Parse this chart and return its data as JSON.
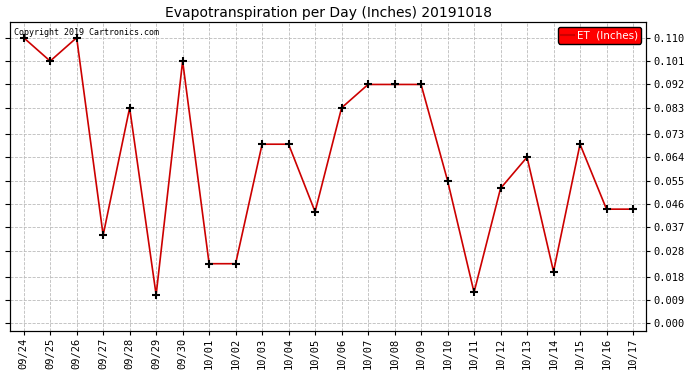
{
  "title": "Evapotranspiration per Day (Inches) 20191018",
  "copyright_text": "Copyright 2019 Cartronics.com",
  "legend_label": "ET  (Inches)",
  "legend_bg": "#ff0000",
  "legend_text_color": "#ffffff",
  "line_color": "#cc0000",
  "marker_color": "#000000",
  "background_color": "#ffffff",
  "grid_color": "#bbbbbb",
  "x_labels": [
    "09/24",
    "09/25",
    "09/26",
    "09/27",
    "09/28",
    "09/29",
    "09/30",
    "10/01",
    "10/02",
    "10/03",
    "10/04",
    "10/05",
    "10/06",
    "10/07",
    "10/08",
    "10/09",
    "10/10",
    "10/11",
    "10/12",
    "10/13",
    "10/14",
    "10/15",
    "10/16",
    "10/17"
  ],
  "y_values": [
    0.11,
    0.101,
    0.11,
    0.034,
    0.083,
    0.011,
    0.101,
    0.023,
    0.023,
    0.069,
    0.069,
    0.043,
    0.083,
    0.092,
    0.092,
    0.092,
    0.055,
    0.012,
    0.052,
    0.064,
    0.02,
    0.069,
    0.044,
    0.044
  ],
  "ylim_min": -0.003,
  "ylim_max": 0.116,
  "yticks": [
    0.0,
    0.009,
    0.018,
    0.028,
    0.037,
    0.046,
    0.055,
    0.064,
    0.073,
    0.083,
    0.092,
    0.101,
    0.11
  ],
  "title_fontsize": 10,
  "tick_fontsize": 7.5
}
